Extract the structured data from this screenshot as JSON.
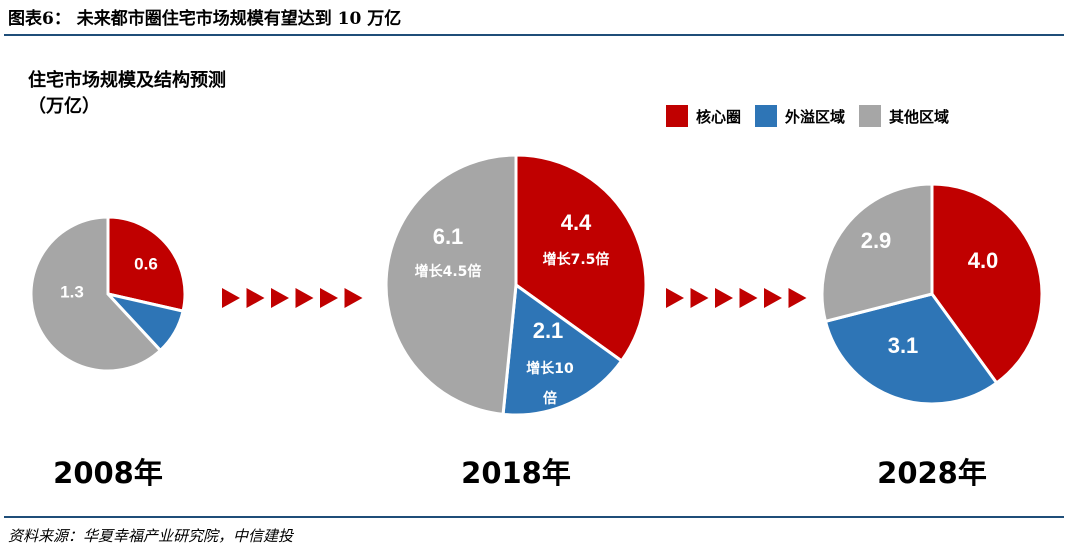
{
  "figure_title": "图表6： 未来都市圈住宅市场规模有望达到 10 万亿",
  "source": "资料来源：华夏幸福产业研究院，中信建投",
  "colors": {
    "core": "#c00000",
    "overflow": "#2e75b6",
    "other": "#a6a6a6",
    "rule": "#1f4e79",
    "arrow": "#c00000"
  },
  "chart_data": {
    "type": "pie",
    "title": "住宅市场规模及结构预测",
    "title_unit": "（万亿）",
    "legend_position": "top-right",
    "legend": [
      {
        "key": "core",
        "label": "核心圈"
      },
      {
        "key": "overflow",
        "label": "外溢区域"
      },
      {
        "key": "other",
        "label": "其他区域"
      }
    ],
    "pies": [
      {
        "year": "2008年",
        "slices": [
          {
            "key": "core",
            "value": 0.6,
            "label": "0.6"
          },
          {
            "key": "overflow",
            "value": 0.2,
            "label": ""
          },
          {
            "key": "other",
            "value": 1.3,
            "label": "1.3"
          }
        ]
      },
      {
        "year": "2018年",
        "slices": [
          {
            "key": "core",
            "value": 4.4,
            "label": "4.4",
            "note": "增长7.5倍"
          },
          {
            "key": "overflow",
            "value": 2.1,
            "label": "2.1",
            "note": "增长10倍"
          },
          {
            "key": "other",
            "value": 6.1,
            "label": "6.1",
            "note": "增长4.5倍"
          }
        ]
      },
      {
        "year": "2028年",
        "slices": [
          {
            "key": "core",
            "value": 4.0,
            "label": "4.0"
          },
          {
            "key": "overflow",
            "value": 3.1,
            "label": "3.1"
          },
          {
            "key": "other",
            "value": 2.9,
            "label": "2.9"
          }
        ]
      }
    ]
  }
}
